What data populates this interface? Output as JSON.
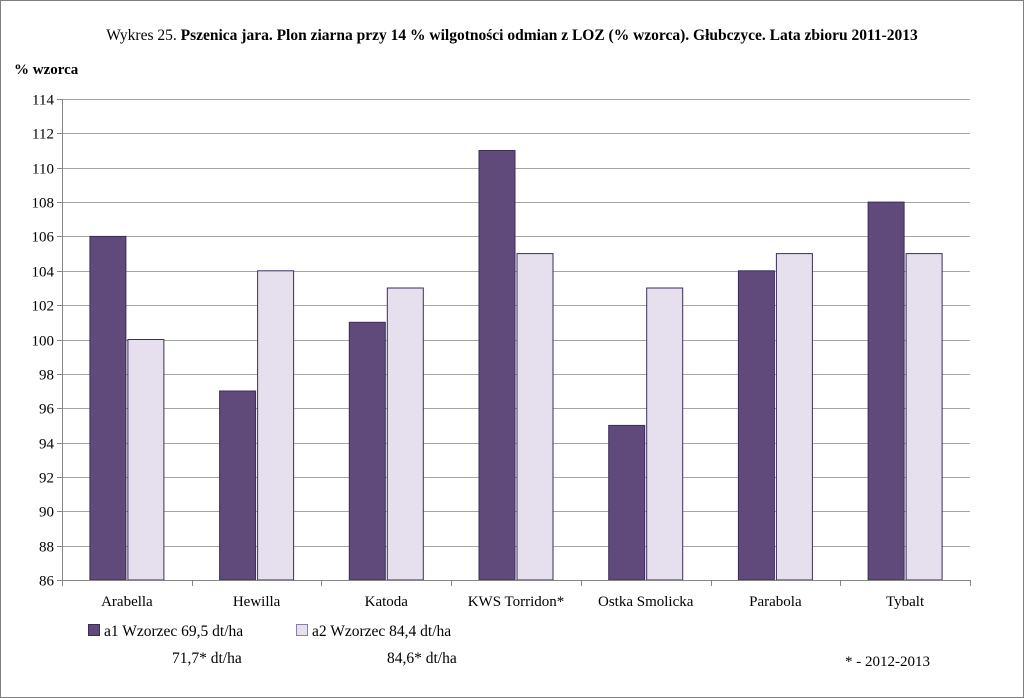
{
  "title_prefix": "Wykres  25.",
  "title_main": "Pszenica jara.  Plon ziarna przy 14 % wilgotności odmian z LOZ (% wzorca). Głubczyce. Lata zbioru 2011-2013",
  "y_unit_label": "% wzorca",
  "legend": {
    "a1_label": "a1 Wzorzec 69,5 dt/ha",
    "a1_note": "71,7* dt/ha",
    "a2_label": "a2 Wzorzec 84,4 dt/ha",
    "a2_note": "84,6* dt/ha"
  },
  "footnote": "* - 2012-2013",
  "colors": {
    "a1": "#5f4a7b",
    "a2": "#e6e0ee",
    "grid": "#a6a6a6",
    "axis": "#868686"
  },
  "chart_data": {
    "type": "bar",
    "categories": [
      "Arabella",
      "Hewilla",
      "Katoda",
      "KWS Torridon*",
      "Ostka Smolicka",
      "Parabola",
      "Tybalt"
    ],
    "series": [
      {
        "name": "a1 Wzorzec 69,5 dt/ha",
        "values": [
          106,
          97,
          101,
          111,
          95,
          104,
          108
        ]
      },
      {
        "name": "a2 Wzorzec 84,4 dt/ha",
        "values": [
          100,
          104,
          103,
          105,
          103,
          105,
          105
        ]
      }
    ],
    "ylabel": "% wzorca",
    "ylim": [
      86,
      114
    ],
    "yticks": [
      86,
      88,
      90,
      92,
      94,
      96,
      98,
      100,
      102,
      104,
      106,
      108,
      110,
      112,
      114
    ],
    "grid": true,
    "legend_position": "bottom-left"
  }
}
